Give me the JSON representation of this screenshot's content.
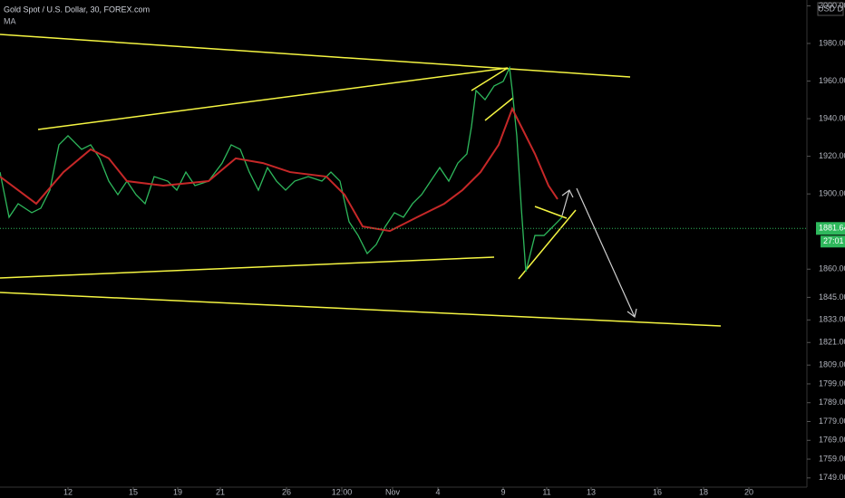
{
  "chart_data": {
    "type": "line",
    "title": "Gold Spot / U.S. Dollar, 30, FOREX.com",
    "currency": "USD D",
    "price": 1881.64,
    "price_label": "1881.64",
    "countdown": "27:01",
    "xlim": [
      0,
      178
    ],
    "ylim": [
      1744.1,
      2003.1
    ],
    "xticks": [
      {
        "value": 15,
        "label": "12"
      },
      {
        "value": 29.4,
        "label": "15"
      },
      {
        "value": 39.2,
        "label": "19"
      },
      {
        "value": 48.6,
        "label": "21"
      },
      {
        "value": 63.2,
        "label": "26"
      },
      {
        "value": 75.4,
        "label": "12:00"
      },
      {
        "value": 86.6,
        "label": "Nov"
      },
      {
        "value": 96.6,
        "label": "4"
      },
      {
        "value": 111,
        "label": "9"
      },
      {
        "value": 120.6,
        "label": "11"
      },
      {
        "value": 130.4,
        "label": "13"
      },
      {
        "value": 145,
        "label": "16"
      },
      {
        "value": 155.2,
        "label": "18"
      },
      {
        "value": 165.2,
        "label": "20"
      }
    ],
    "yticks": [
      {
        "value": 2000,
        "label": "2000.00"
      },
      {
        "value": 1980,
        "label": "1980.00"
      },
      {
        "value": 1960,
        "label": "1960.00"
      },
      {
        "value": 1940,
        "label": "1940.00"
      },
      {
        "value": 1920,
        "label": "1920.00"
      },
      {
        "value": 1900,
        "label": "1900.00"
      },
      {
        "value": 1860,
        "label": "1860.00"
      },
      {
        "value": 1845,
        "label": "1845.00"
      },
      {
        "value": 1833,
        "label": "1833.00"
      },
      {
        "value": 1821,
        "label": "1821.00"
      },
      {
        "value": 1809,
        "label": "1809.00"
      },
      {
        "value": 1799,
        "label": "1799.00"
      },
      {
        "value": 1789,
        "label": "1789.00"
      },
      {
        "value": 1779,
        "label": "1779.00"
      },
      {
        "value": 1769,
        "label": "1769.00"
      },
      {
        "value": 1759,
        "label": "1759.00"
      },
      {
        "value": 1749,
        "label": "1749.00"
      }
    ],
    "series": [
      {
        "color": "#2eb85c",
        "x": [
          0,
          2,
          4,
          7,
          9,
          11,
          13,
          15,
          18,
          20,
          22,
          24,
          26,
          28,
          30,
          32,
          34,
          37,
          39,
          41,
          43,
          46,
          49,
          51,
          53,
          55,
          57,
          59,
          61,
          63,
          65,
          68,
          71,
          73,
          75,
          77,
          79,
          81,
          83,
          85,
          87,
          89,
          91,
          93,
          95,
          97,
          99,
          101,
          103,
          104,
          105,
          107,
          109,
          111,
          112.4,
          113,
          114,
          115,
          116,
          118,
          120,
          122,
          124
        ],
        "values": [
          1911.6,
          1887.6,
          1894.8,
          1890.0,
          1892.4,
          1902.0,
          1926.1,
          1930.9,
          1923.7,
          1926.1,
          1918.9,
          1906.8,
          1899.6,
          1906.8,
          1899.6,
          1894.8,
          1909.2,
          1906.8,
          1902.0,
          1911.6,
          1904.4,
          1906.8,
          1916.4,
          1926.1,
          1923.7,
          1911.6,
          1902.0,
          1914.0,
          1906.8,
          1902.0,
          1906.8,
          1909.2,
          1906.8,
          1911.6,
          1906.8,
          1885.2,
          1877.9,
          1868.3,
          1873.1,
          1882.7,
          1890.0,
          1887.6,
          1894.8,
          1899.6,
          1906.8,
          1914.0,
          1906.8,
          1916.4,
          1921.3,
          1935.7,
          1955.0,
          1950.1,
          1957.4,
          1959.8,
          1967.0,
          1955.0,
          1930.9,
          1892.4,
          1858.7,
          1877.9,
          1877.9,
          1882.7,
          1887.6
        ]
      },
      {
        "name": "MA",
        "color": "#c62828",
        "x": [
          0,
          8,
          14,
          20,
          24,
          28,
          36,
          46,
          52,
          58,
          64,
          72,
          76,
          80,
          86,
          92,
          98,
          102,
          106,
          110,
          113,
          115,
          118,
          121,
          123
        ],
        "values": [
          1909.2,
          1894.8,
          1911.6,
          1923.7,
          1918.9,
          1906.8,
          1904.4,
          1906.8,
          1918.9,
          1916.4,
          1911.6,
          1909.2,
          1899.6,
          1882.7,
          1880.3,
          1887.6,
          1894.8,
          1902.0,
          1911.6,
          1926.1,
          1945.3,
          1935.7,
          1921.3,
          1904.4,
          1897.2
        ]
      }
    ]
  }
}
